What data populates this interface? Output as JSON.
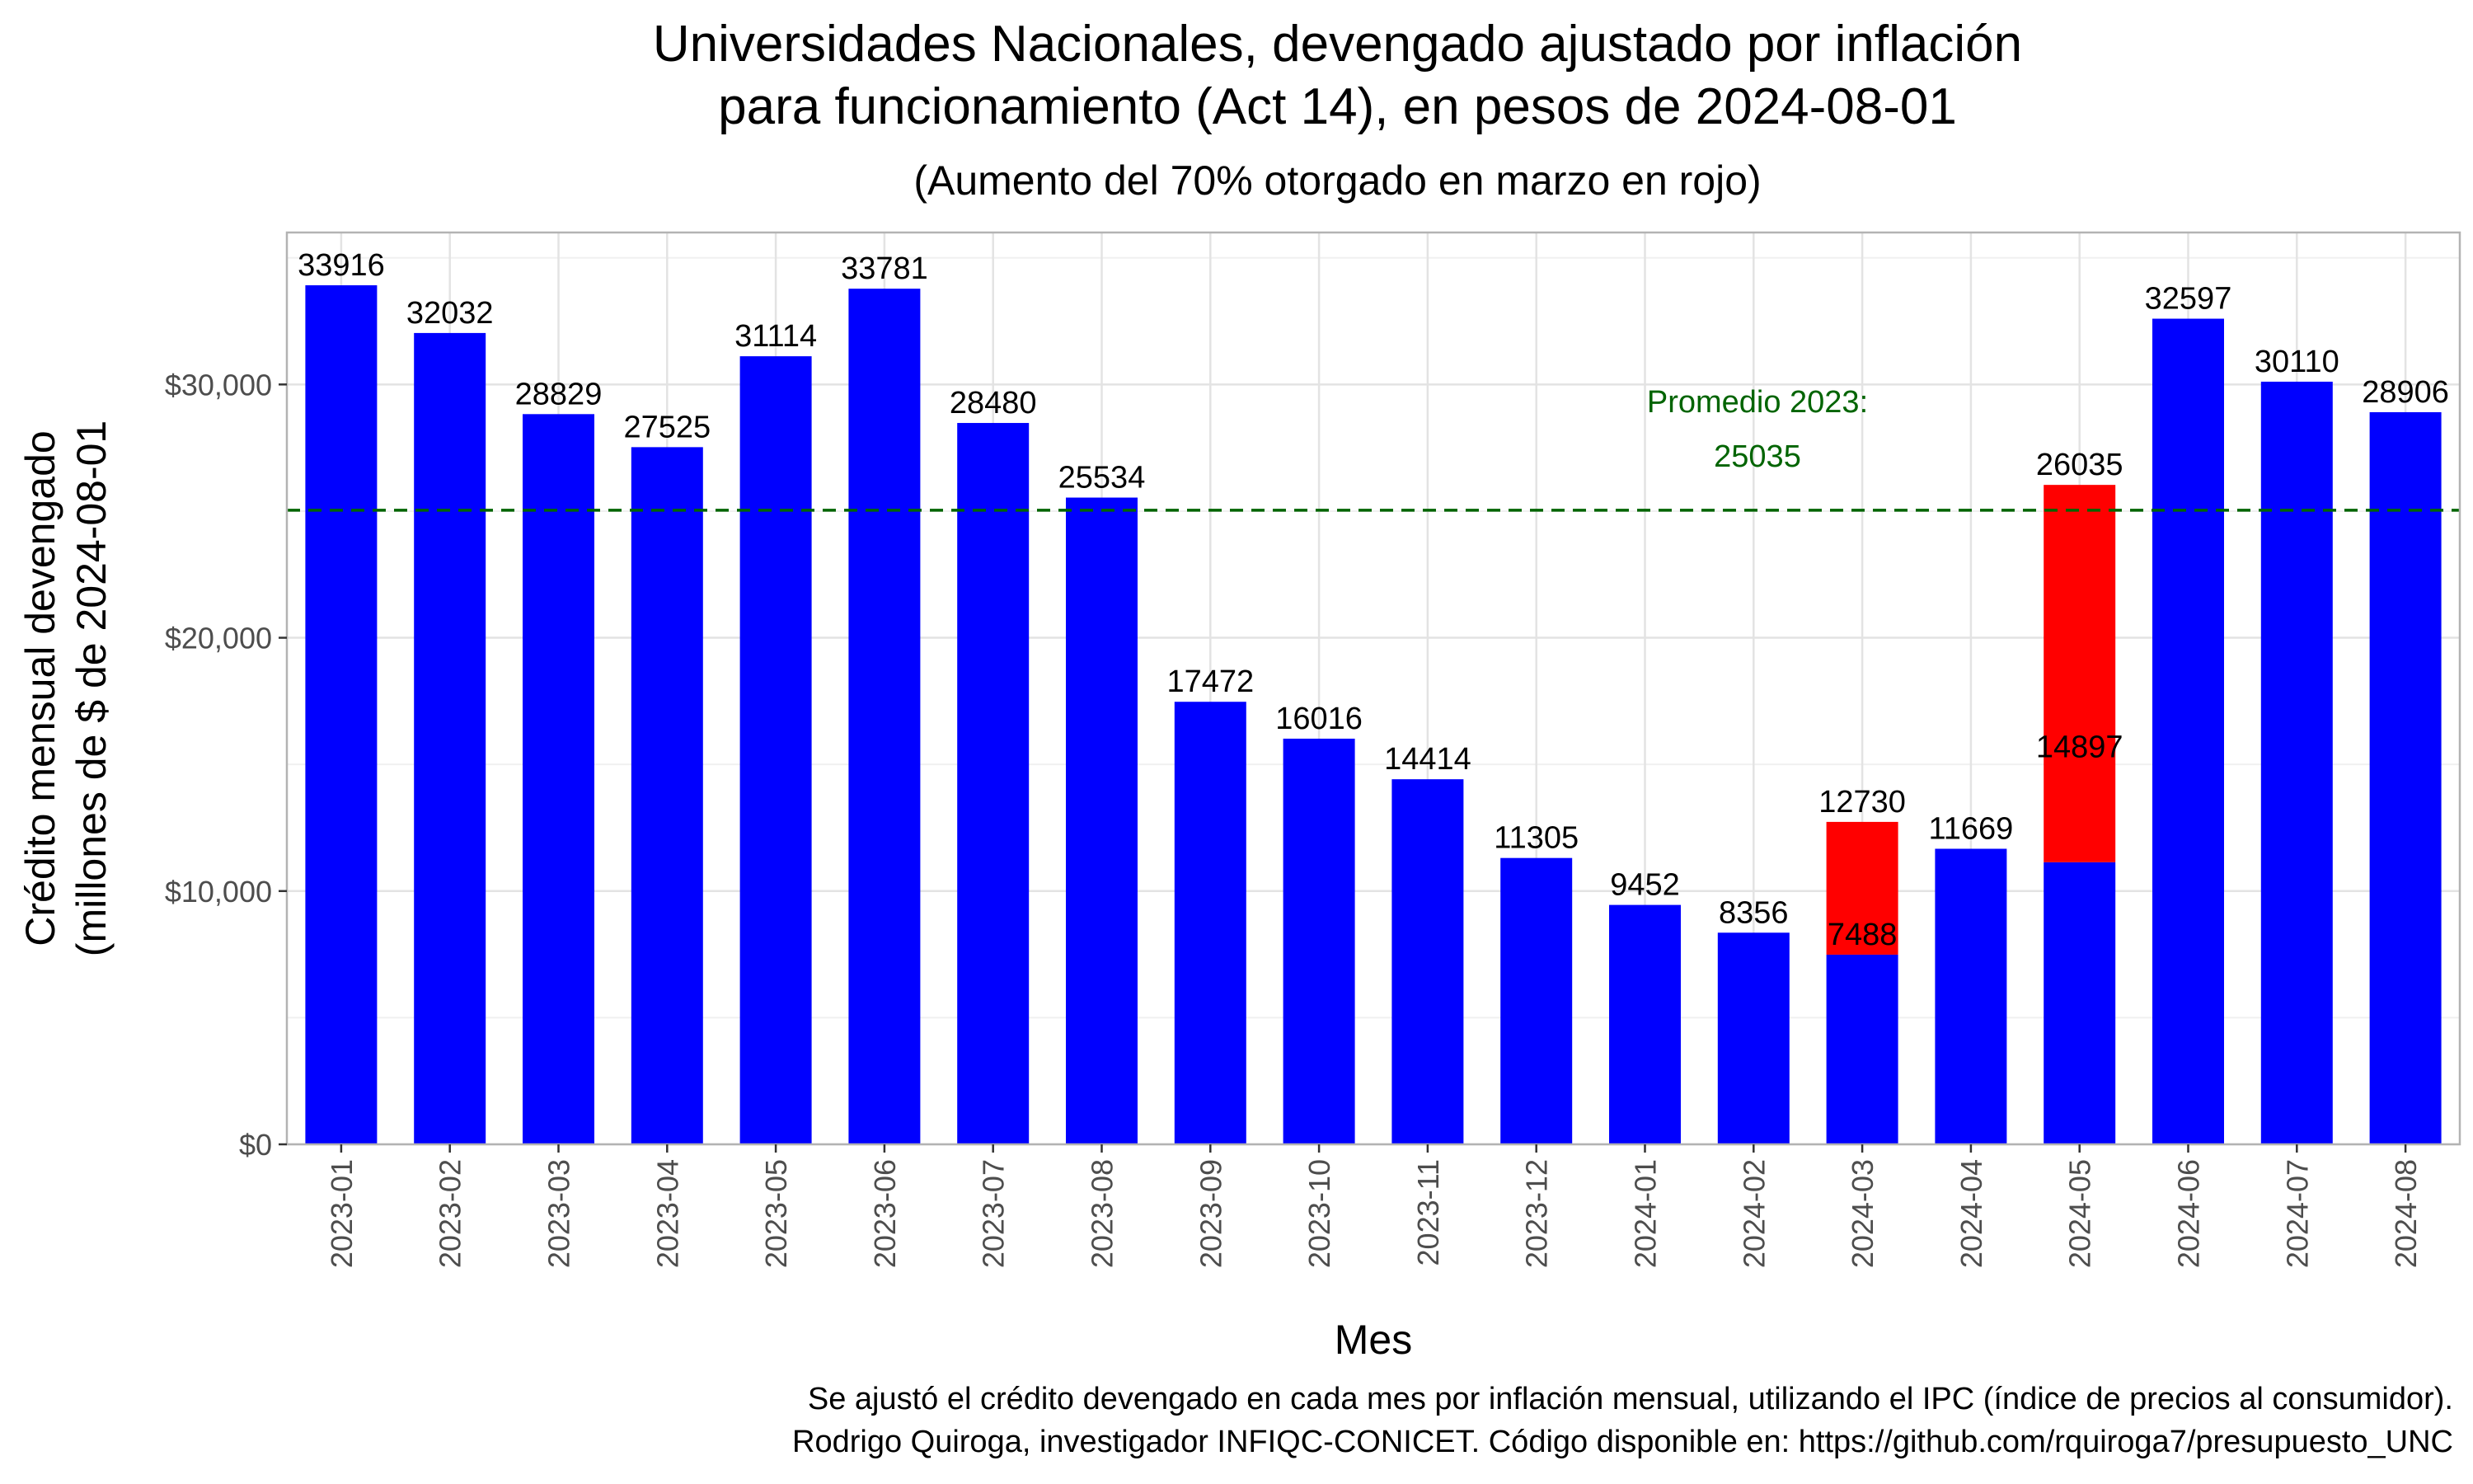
{
  "chart_data": {
    "type": "bar",
    "title_lines": [
      "Universidades Nacionales, devengado ajustado por inflación",
      "para funcionamiento (Act 14), en pesos de 2024-08-01"
    ],
    "subtitle": "(Aumento del 70% otorgado en marzo en rojo)",
    "xlabel": "Mes",
    "ylabel_lines": [
      "Crédito mensual devengado",
      "(millones de $ de 2024-08-01"
    ],
    "ylim": [
      0,
      36000
    ],
    "yticks": [
      0,
      10000,
      20000,
      30000
    ],
    "ytick_labels": [
      "$0",
      "$10,000",
      "$20,000",
      "$30,000"
    ],
    "grid": true,
    "categories": [
      "2023-01",
      "2023-02",
      "2023-03",
      "2023-04",
      "2023-05",
      "2023-06",
      "2023-07",
      "2023-08",
      "2023-09",
      "2023-10",
      "2023-11",
      "2023-12",
      "2024-01",
      "2024-02",
      "2024-03",
      "2024-04",
      "2024-05",
      "2024-06",
      "2024-07",
      "2024-08"
    ],
    "series": [
      {
        "color": "#0000ff",
        "values": [
          33916,
          32032,
          28829,
          27525,
          31114,
          33781,
          28480,
          25534,
          17472,
          16016,
          14414,
          11305,
          9452,
          8356,
          7488,
          11669,
          11138,
          32597,
          30110,
          28906
        ]
      },
      {
        "color": "#ff0000",
        "values": [
          0,
          0,
          0,
          0,
          0,
          0,
          0,
          0,
          0,
          0,
          0,
          0,
          0,
          0,
          5242,
          0,
          14897,
          0,
          0,
          0
        ]
      }
    ],
    "bar_labels": [
      {
        "category": "2023-01",
        "value": 33916,
        "text": "33916"
      },
      {
        "category": "2023-02",
        "value": 32032,
        "text": "32032"
      },
      {
        "category": "2023-03",
        "value": 28829,
        "text": "28829"
      },
      {
        "category": "2023-04",
        "value": 27525,
        "text": "27525"
      },
      {
        "category": "2023-05",
        "value": 31114,
        "text": "31114"
      },
      {
        "category": "2023-06",
        "value": 33781,
        "text": "33781"
      },
      {
        "category": "2023-07",
        "value": 28480,
        "text": "28480"
      },
      {
        "category": "2023-08",
        "value": 25534,
        "text": "25534"
      },
      {
        "category": "2023-09",
        "value": 17472,
        "text": "17472"
      },
      {
        "category": "2023-10",
        "value": 16016,
        "text": "16016"
      },
      {
        "category": "2023-11",
        "value": 14414,
        "text": "14414"
      },
      {
        "category": "2023-12",
        "value": 11305,
        "text": "11305"
      },
      {
        "category": "2024-01",
        "value": 9452,
        "text": "9452"
      },
      {
        "category": "2024-02",
        "value": 8356,
        "text": "8356"
      },
      {
        "category": "2024-03",
        "value": 12730,
        "text": "12730"
      },
      {
        "category": "2024-03",
        "value": 7488,
        "text": "7488"
      },
      {
        "category": "2024-04",
        "value": 11669,
        "text": "11669"
      },
      {
        "category": "2024-05",
        "value": 26035,
        "text": "26035"
      },
      {
        "category": "2024-05",
        "value": 14897,
        "text": "14897"
      },
      {
        "category": "2024-06",
        "value": 32597,
        "text": "32597"
      },
      {
        "category": "2024-07",
        "value": 30110,
        "text": "30110"
      },
      {
        "category": "2024-08",
        "value": 28906,
        "text": "28906"
      }
    ],
    "reference_line": {
      "value": 25035,
      "color": "#006400",
      "style": "dashed",
      "label_lines": [
        "Promedio 2023:",
        "25035"
      ]
    }
  },
  "caption_lines": [
    "Se ajustó el crédito devengado en cada mes por inflación mensual, utilizando el IPC (índice de precios al consumidor).",
    "Rodrigo Quiroga, investigador INFIQC-CONICET. Código disponible en: https://github.com/rquiroga7/presupuesto_UNC"
  ]
}
